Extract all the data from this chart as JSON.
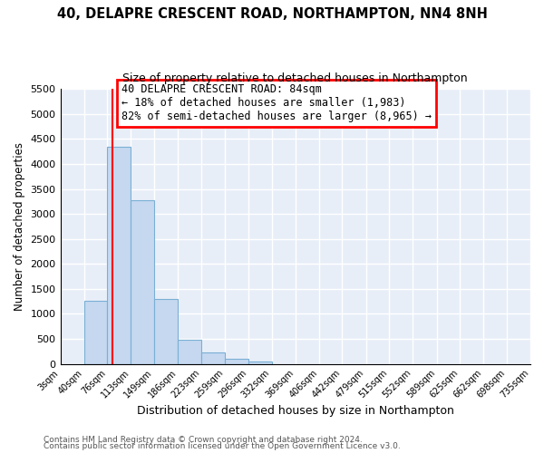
{
  "title": "40, DELAPRE CRESCENT ROAD, NORTHAMPTON, NN4 8NH",
  "subtitle": "Size of property relative to detached houses in Northampton",
  "xlabel": "Distribution of detached houses by size in Northampton",
  "ylabel": "Number of detached properties",
  "bar_color": "#c5d8f0",
  "bar_edge_color": "#7aafd4",
  "background_color": "#e8eef8",
  "grid_color": "white",
  "annotation_line1": "40 DELAPRE CRESCENT ROAD: 84sqm",
  "annotation_line2": "← 18% of detached houses are smaller (1,983)",
  "annotation_line3": "82% of semi-detached houses are larger (8,965) →",
  "vline_x": 84,
  "vline_color": "red",
  "bins": [
    3,
    40,
    76,
    113,
    149,
    186,
    223,
    259,
    296,
    332,
    369,
    406,
    442,
    479,
    515,
    552,
    589,
    625,
    662,
    698,
    735
  ],
  "bar_heights": [
    0,
    1270,
    4350,
    3280,
    1290,
    480,
    230,
    95,
    55,
    0,
    0,
    0,
    0,
    0,
    0,
    0,
    0,
    0,
    0,
    0
  ],
  "ylim": [
    0,
    5500
  ],
  "yticks": [
    0,
    500,
    1000,
    1500,
    2000,
    2500,
    3000,
    3500,
    4000,
    4500,
    5000,
    5500
  ],
  "footnote1": "Contains HM Land Registry data © Crown copyright and database right 2024.",
  "footnote2": "Contains public sector information licensed under the Open Government Licence v3.0."
}
